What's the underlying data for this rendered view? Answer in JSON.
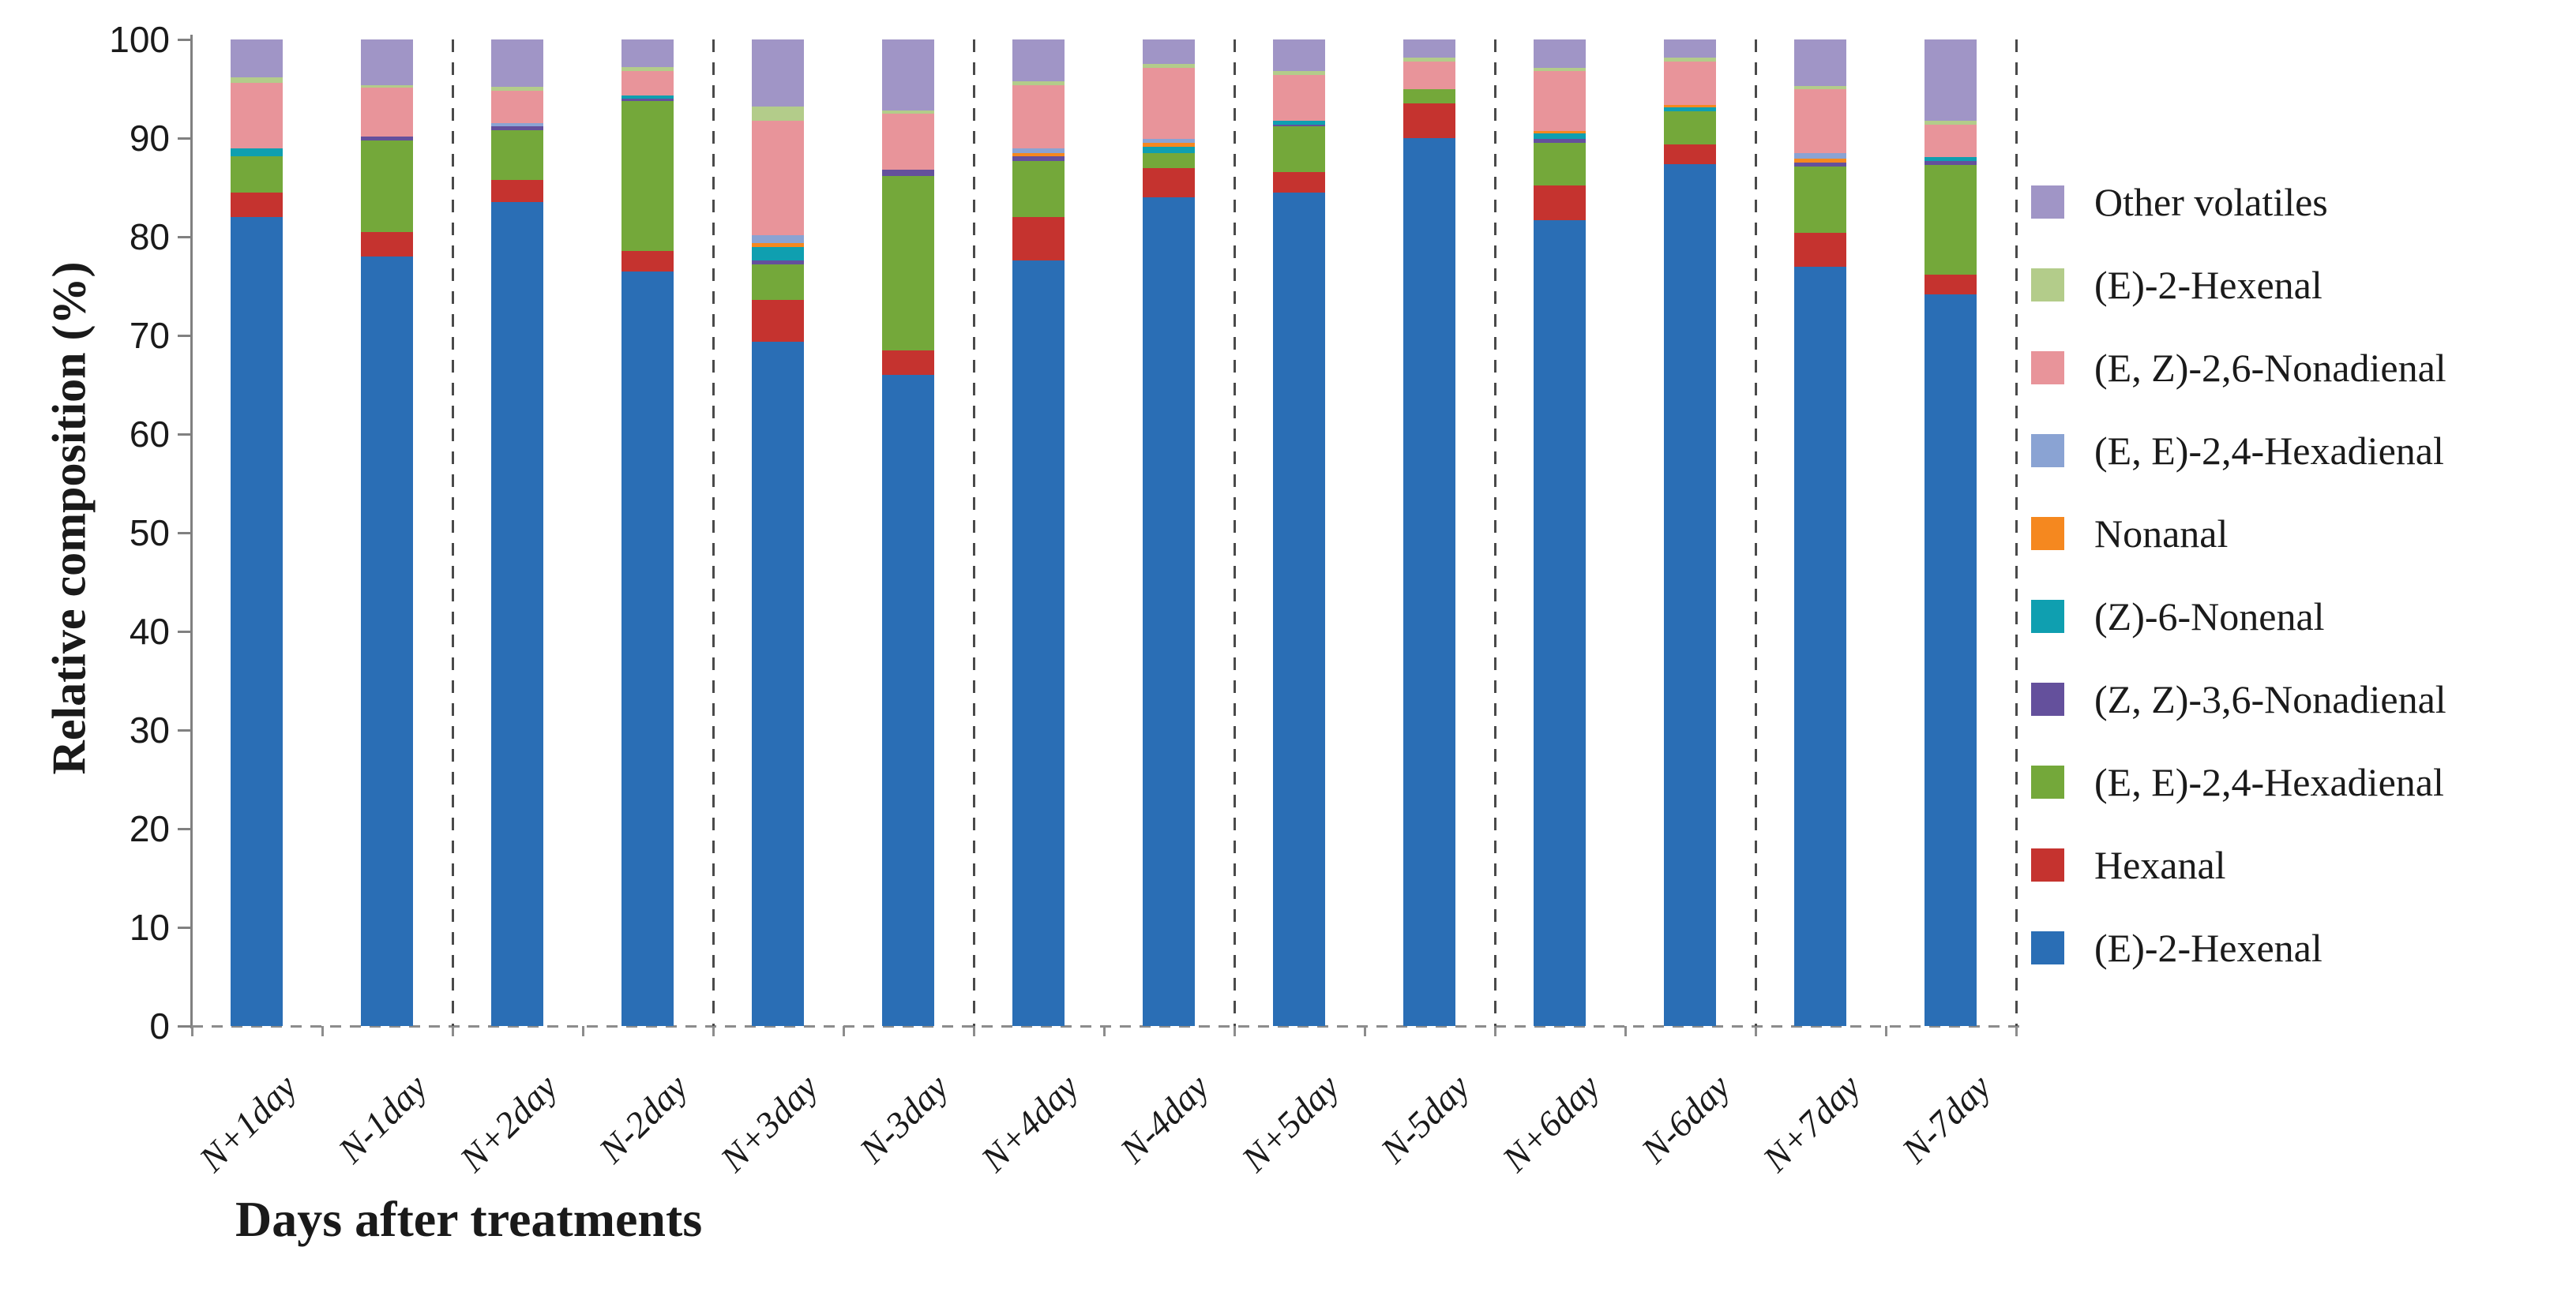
{
  "chart_data": {
    "type": "bar",
    "stacked": true,
    "unit": "%",
    "xlabel": "Days after treatments",
    "ylabel": "Relative composition (%)",
    "ylim": [
      0,
      100
    ],
    "yticks": [
      0,
      10,
      20,
      30,
      40,
      50,
      60,
      70,
      80,
      90,
      100
    ],
    "grid": false,
    "legend_position": "right",
    "categories": [
      "N+1day",
      "N-1day",
      "N+2day",
      "N-2day",
      "N+3day",
      "N-3day",
      "N+4day",
      "N-4day",
      "N+5day",
      "N-5day",
      "N+6day",
      "N-6day",
      "N+7day",
      "N-7day"
    ],
    "series": [
      {
        "name": "(E)-2-Hexenal",
        "color": "#2a6eb5",
        "values": [
          82.0,
          78.0,
          83.5,
          76.5,
          69.4,
          66.0,
          77.6,
          84.0,
          84.5,
          90.0,
          81.7,
          87.4,
          77.0,
          74.2
        ]
      },
      {
        "name": "Hexanal",
        "color": "#c5332f",
        "values": [
          2.5,
          2.5,
          2.3,
          2.1,
          4.2,
          2.5,
          4.4,
          3.0,
          2.1,
          3.5,
          3.5,
          2.0,
          3.4,
          2.0
        ]
      },
      {
        "name": "(E, E)-2,4-Hexadienal",
        "color": "#74a83a",
        "values": [
          3.7,
          9.3,
          5.0,
          15.2,
          3.6,
          17.7,
          5.7,
          1.5,
          4.6,
          1.5,
          4.3,
          3.3,
          6.7,
          11.1
        ]
      },
      {
        "name": "(Z, Z)-3,6-Nonadienal",
        "color": "#64509c",
        "values": [
          0,
          0.4,
          0.4,
          0.2,
          0.4,
          0.6,
          0.5,
          0,
          0.2,
          0,
          0.4,
          0,
          0.4,
          0.4
        ]
      },
      {
        "name": "(Z)-6-Nonenal",
        "color": "#0f9fb0",
        "values": [
          0.8,
          0,
          0,
          0.3,
          1.4,
          0,
          0,
          0.6,
          0.4,
          0,
          0.6,
          0.4,
          0,
          0.4
        ]
      },
      {
        "name": "Nonanal",
        "color": "#f5881f",
        "values": [
          0,
          0,
          0,
          0,
          0.4,
          0,
          0.3,
          0.4,
          0,
          0,
          0.2,
          0.3,
          0.4,
          0
        ]
      },
      {
        "name": "(E, E)-2,4-Hexadienal",
        "color": "#8aa3d3",
        "values": [
          0,
          0,
          0.3,
          0,
          0.8,
          0,
          0.5,
          0.4,
          0,
          0,
          0,
          0,
          0.6,
          0
        ]
      },
      {
        "name": "(E, Z)-2,6-Nonadienal",
        "color": "#e8949a",
        "values": [
          6.6,
          4.9,
          3.3,
          2.5,
          11.6,
          5.7,
          6.4,
          7.2,
          4.6,
          2.8,
          6.1,
          4.4,
          6.5,
          3.3
        ]
      },
      {
        "name": "(E)-2-Hexenal",
        "color": "#b3cc8a",
        "values": [
          0.6,
          0.3,
          0.4,
          0.4,
          1.4,
          0.3,
          0.4,
          0.4,
          0.4,
          0.4,
          0.3,
          0.4,
          0.3,
          0.4
        ]
      },
      {
        "name": "Other volatiles",
        "color": "#a095c6",
        "values": [
          3.8,
          4.6,
          4.8,
          2.8,
          6.8,
          7.2,
          4.2,
          2.5,
          3.2,
          1.8,
          2.9,
          1.8,
          4.7,
          8.2
        ]
      }
    ],
    "legend_top_to_bottom": [
      "Other volatiles",
      "(E)-2-Hexenal",
      "(E, Z)-2,6-Nonadienal",
      "(E, E)-2,4-Hexadienal",
      "Nonanal",
      "(Z)-6-Nonenal",
      "(Z, Z)-3,6-Nonadienal",
      "(E, E)-2,4-Hexadienal",
      "Hexanal",
      "(E)-2-Hexenal"
    ]
  },
  "colors": {
    "axis": "#808080",
    "separator": "#4a4a4a",
    "baseline": "#8c8c8c",
    "text": "#1a1a1a"
  }
}
